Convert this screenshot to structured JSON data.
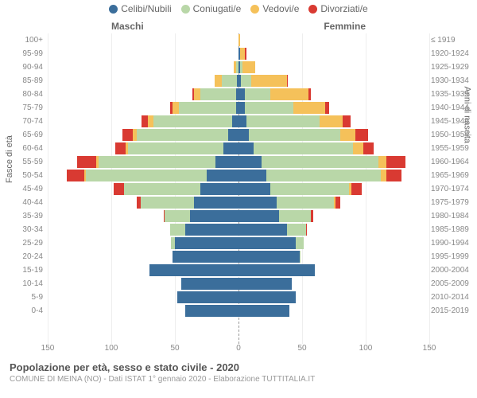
{
  "legend": [
    {
      "label": "Celibi/Nubili",
      "color": "#3b6e9b"
    },
    {
      "label": "Coniugati/e",
      "color": "#b9d7a8"
    },
    {
      "label": "Vedovi/e",
      "color": "#f5c15a"
    },
    {
      "label": "Divorziati/e",
      "color": "#d93a32"
    }
  ],
  "columns": {
    "male": "Maschi",
    "female": "Femmine"
  },
  "y_left_title": "Fasce di età",
  "y_right_title": "Anni di nascita",
  "x_ticks": [
    150,
    100,
    50,
    0,
    50,
    100,
    150
  ],
  "x_max": 150,
  "title": "Popolazione per età, sesso e stato civile - 2020",
  "subtitle": "COMUNE DI MEINA (NO) - Dati ISTAT 1° gennaio 2020 - Elaborazione TUTTITALIA.IT",
  "colors": {
    "single": "#3b6e9b",
    "married": "#b9d7a8",
    "widowed": "#f5c15a",
    "divorced": "#d93a32",
    "label": "#888888",
    "grid": "#eeeeee"
  },
  "rows": [
    {
      "age": "100+",
      "year": "≤ 1919",
      "m": [
        0,
        0,
        0,
        0
      ],
      "f": [
        0,
        0,
        1,
        0
      ]
    },
    {
      "age": "95-99",
      "year": "1920-1924",
      "m": [
        0,
        0,
        0,
        0
      ],
      "f": [
        1,
        0,
        4,
        1
      ]
    },
    {
      "age": "90-94",
      "year": "1925-1929",
      "m": [
        0,
        2,
        2,
        0
      ],
      "f": [
        1,
        2,
        10,
        0
      ]
    },
    {
      "age": "85-89",
      "year": "1930-1934",
      "m": [
        1,
        12,
        6,
        0
      ],
      "f": [
        2,
        8,
        28,
        1
      ]
    },
    {
      "age": "80-84",
      "year": "1935-1939",
      "m": [
        2,
        28,
        5,
        1
      ],
      "f": [
        5,
        20,
        30,
        2
      ]
    },
    {
      "age": "75-79",
      "year": "1940-1944",
      "m": [
        2,
        45,
        5,
        2
      ],
      "f": [
        5,
        38,
        25,
        3
      ]
    },
    {
      "age": "70-74",
      "year": "1945-1949",
      "m": [
        5,
        62,
        4,
        5
      ],
      "f": [
        6,
        58,
        18,
        6
      ]
    },
    {
      "age": "65-69",
      "year": "1950-1954",
      "m": [
        8,
        72,
        3,
        8
      ],
      "f": [
        8,
        72,
        12,
        10
      ]
    },
    {
      "age": "60-64",
      "year": "1955-1959",
      "m": [
        12,
        75,
        2,
        8
      ],
      "f": [
        12,
        78,
        8,
        8
      ]
    },
    {
      "age": "55-59",
      "year": "1960-1964",
      "m": [
        18,
        92,
        2,
        15
      ],
      "f": [
        18,
        92,
        6,
        15
      ]
    },
    {
      "age": "50-54",
      "year": "1965-1969",
      "m": [
        25,
        95,
        1,
        14
      ],
      "f": [
        22,
        90,
        4,
        12
      ]
    },
    {
      "age": "45-49",
      "year": "1970-1974",
      "m": [
        30,
        60,
        0,
        8
      ],
      "f": [
        25,
        62,
        2,
        8
      ]
    },
    {
      "age": "40-44",
      "year": "1975-1979",
      "m": [
        35,
        42,
        0,
        3
      ],
      "f": [
        30,
        45,
        1,
        4
      ]
    },
    {
      "age": "35-39",
      "year": "1980-1984",
      "m": [
        38,
        20,
        0,
        1
      ],
      "f": [
        32,
        25,
        0,
        2
      ]
    },
    {
      "age": "30-34",
      "year": "1985-1989",
      "m": [
        42,
        12,
        0,
        0
      ],
      "f": [
        38,
        15,
        0,
        1
      ]
    },
    {
      "age": "25-29",
      "year": "1990-1994",
      "m": [
        50,
        3,
        0,
        0
      ],
      "f": [
        45,
        6,
        0,
        0
      ]
    },
    {
      "age": "20-24",
      "year": "1995-1999",
      "m": [
        52,
        0,
        0,
        0
      ],
      "f": [
        48,
        1,
        0,
        0
      ]
    },
    {
      "age": "15-19",
      "year": "2000-2004",
      "m": [
        70,
        0,
        0,
        0
      ],
      "f": [
        60,
        0,
        0,
        0
      ]
    },
    {
      "age": "10-14",
      "year": "2005-2009",
      "m": [
        45,
        0,
        0,
        0
      ],
      "f": [
        42,
        0,
        0,
        0
      ]
    },
    {
      "age": "5-9",
      "year": "2010-2014",
      "m": [
        48,
        0,
        0,
        0
      ],
      "f": [
        45,
        0,
        0,
        0
      ]
    },
    {
      "age": "0-4",
      "year": "2015-2019",
      "m": [
        42,
        0,
        0,
        0
      ],
      "f": [
        40,
        0,
        0,
        0
      ]
    }
  ]
}
